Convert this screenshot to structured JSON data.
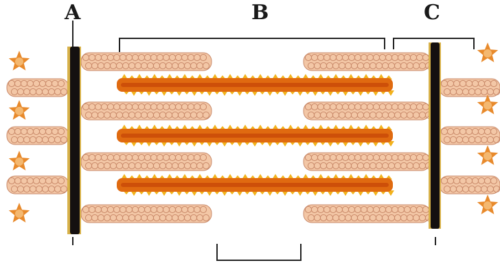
{
  "labels": {
    "a": "A",
    "b": "B",
    "c": "C"
  },
  "colors": {
    "z_disc": "#141010",
    "z_disc_edge": "#d8b24a",
    "thin_filament_fill": "#f3c7a6",
    "thin_filament_bead": "#e9b08c",
    "thin_filament_outline": "#c98a6a",
    "thick_filament": "#e06a10",
    "thick_filament_core": "#c94a08",
    "myosin_head": "#f2b21c",
    "cross_section": "#e88a2c",
    "bracket": "#222222"
  }
}
